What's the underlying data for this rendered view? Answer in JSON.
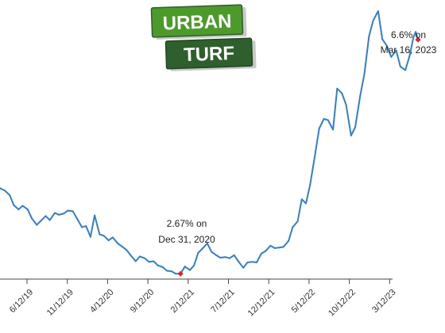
{
  "logo": {
    "line1": "URBAN",
    "line2": "TURF",
    "colors": {
      "green": "#4c9a2a",
      "dark": "#2f5f2c",
      "shadow": "#c9c9c9"
    }
  },
  "chart_data": {
    "type": "line",
    "title": "",
    "xlabel": "",
    "ylabel": "",
    "grid": false,
    "x_tick_labels": [
      "6/12/19",
      "11/12/19",
      "4/12/20",
      "9/12/20",
      "2/12/21",
      "7/12/21",
      "12/12/21",
      "5/12/22",
      "10/12/22",
      "3/12/23"
    ],
    "x_range": [
      "2019-03-01",
      "2023-04-01"
    ],
    "ylim": [
      2.5,
      7.2
    ],
    "series": [
      {
        "color": "#2f80d1",
        "points": [
          [
            "2019-03-01",
            4.35
          ],
          [
            "2019-03-15",
            4.28
          ],
          [
            "2019-04-01",
            4.17
          ],
          [
            "2019-04-15",
            4.14
          ],
          [
            "2019-05-01",
            4.1
          ],
          [
            "2019-05-15",
            4.07
          ],
          [
            "2019-06-01",
            3.99
          ],
          [
            "2019-06-15",
            3.82
          ],
          [
            "2019-07-01",
            3.75
          ],
          [
            "2019-07-15",
            3.81
          ],
          [
            "2019-08-01",
            3.75
          ],
          [
            "2019-08-15",
            3.6
          ],
          [
            "2019-09-01",
            3.49
          ],
          [
            "2019-09-15",
            3.56
          ],
          [
            "2019-10-01",
            3.64
          ],
          [
            "2019-10-15",
            3.57
          ],
          [
            "2019-11-01",
            3.69
          ],
          [
            "2019-11-15",
            3.66
          ],
          [
            "2019-12-01",
            3.68
          ],
          [
            "2019-12-15",
            3.73
          ],
          [
            "2020-01-01",
            3.72
          ],
          [
            "2020-01-15",
            3.6
          ],
          [
            "2020-02-01",
            3.45
          ],
          [
            "2020-02-15",
            3.47
          ],
          [
            "2020-03-01",
            3.29
          ],
          [
            "2020-03-15",
            3.65
          ],
          [
            "2020-04-01",
            3.33
          ],
          [
            "2020-04-15",
            3.31
          ],
          [
            "2020-05-01",
            3.23
          ],
          [
            "2020-05-15",
            3.28
          ],
          [
            "2020-06-01",
            3.18
          ],
          [
            "2020-06-15",
            3.13
          ],
          [
            "2020-07-01",
            3.07
          ],
          [
            "2020-07-15",
            2.98
          ],
          [
            "2020-08-01",
            2.88
          ],
          [
            "2020-08-15",
            2.96
          ],
          [
            "2020-09-01",
            2.93
          ],
          [
            "2020-09-15",
            2.87
          ],
          [
            "2020-10-01",
            2.88
          ],
          [
            "2020-10-15",
            2.81
          ],
          [
            "2020-11-01",
            2.78
          ],
          [
            "2020-11-15",
            2.72
          ],
          [
            "2020-12-01",
            2.71
          ],
          [
            "2020-12-15",
            2.67
          ],
          [
            "2020-12-31",
            2.67
          ],
          [
            "2021-01-15",
            2.79
          ],
          [
            "2021-02-01",
            2.73
          ],
          [
            "2021-02-15",
            2.81
          ],
          [
            "2021-03-01",
            3.02
          ],
          [
            "2021-03-15",
            3.09
          ],
          [
            "2021-04-01",
            3.18
          ],
          [
            "2021-04-15",
            3.04
          ],
          [
            "2021-05-01",
            2.98
          ],
          [
            "2021-05-15",
            2.94
          ],
          [
            "2021-06-01",
            2.95
          ],
          [
            "2021-06-15",
            2.93
          ],
          [
            "2021-07-01",
            2.98
          ],
          [
            "2021-07-15",
            2.88
          ],
          [
            "2021-08-01",
            2.77
          ],
          [
            "2021-08-15",
            2.86
          ],
          [
            "2021-09-01",
            2.87
          ],
          [
            "2021-09-15",
            2.86
          ],
          [
            "2021-10-01",
            3.01
          ],
          [
            "2021-10-15",
            3.05
          ],
          [
            "2021-11-01",
            3.14
          ],
          [
            "2021-11-15",
            3.1
          ],
          [
            "2021-12-01",
            3.11
          ],
          [
            "2021-12-15",
            3.12
          ],
          [
            "2022-01-01",
            3.22
          ],
          [
            "2022-01-15",
            3.45
          ],
          [
            "2022-02-01",
            3.55
          ],
          [
            "2022-02-15",
            3.92
          ],
          [
            "2022-03-01",
            3.85
          ],
          [
            "2022-03-15",
            4.16
          ],
          [
            "2022-04-01",
            4.67
          ],
          [
            "2022-04-15",
            5.11
          ],
          [
            "2022-05-01",
            5.27
          ],
          [
            "2022-05-15",
            5.25
          ],
          [
            "2022-06-01",
            5.09
          ],
          [
            "2022-06-15",
            5.78
          ],
          [
            "2022-07-01",
            5.7
          ],
          [
            "2022-07-15",
            5.51
          ],
          [
            "2022-08-01",
            4.99
          ],
          [
            "2022-08-15",
            5.13
          ],
          [
            "2022-09-01",
            5.66
          ],
          [
            "2022-09-15",
            6.02
          ],
          [
            "2022-10-01",
            6.66
          ],
          [
            "2022-10-15",
            6.92
          ],
          [
            "2022-11-01",
            7.08
          ],
          [
            "2022-11-15",
            6.61
          ],
          [
            "2022-12-01",
            6.49
          ],
          [
            "2022-12-15",
            6.31
          ],
          [
            "2023-01-01",
            6.42
          ],
          [
            "2023-01-15",
            6.15
          ],
          [
            "2023-02-01",
            6.09
          ],
          [
            "2023-02-15",
            6.32
          ],
          [
            "2023-03-01",
            6.65
          ],
          [
            "2023-03-08",
            6.73
          ],
          [
            "2023-03-16",
            6.6
          ]
        ]
      }
    ],
    "highlights": [
      {
        "x": "2020-12-31",
        "y": 2.67,
        "color": "#e32222"
      },
      {
        "x": "2023-03-16",
        "y": 6.6,
        "color": "#e32222"
      }
    ],
    "annotations": [
      {
        "lines": [
          "2.67% on",
          "Dec 31, 2020"
        ]
      },
      {
        "lines": [
          "6.6% on",
          "Mar 16, 2023"
        ]
      }
    ]
  }
}
